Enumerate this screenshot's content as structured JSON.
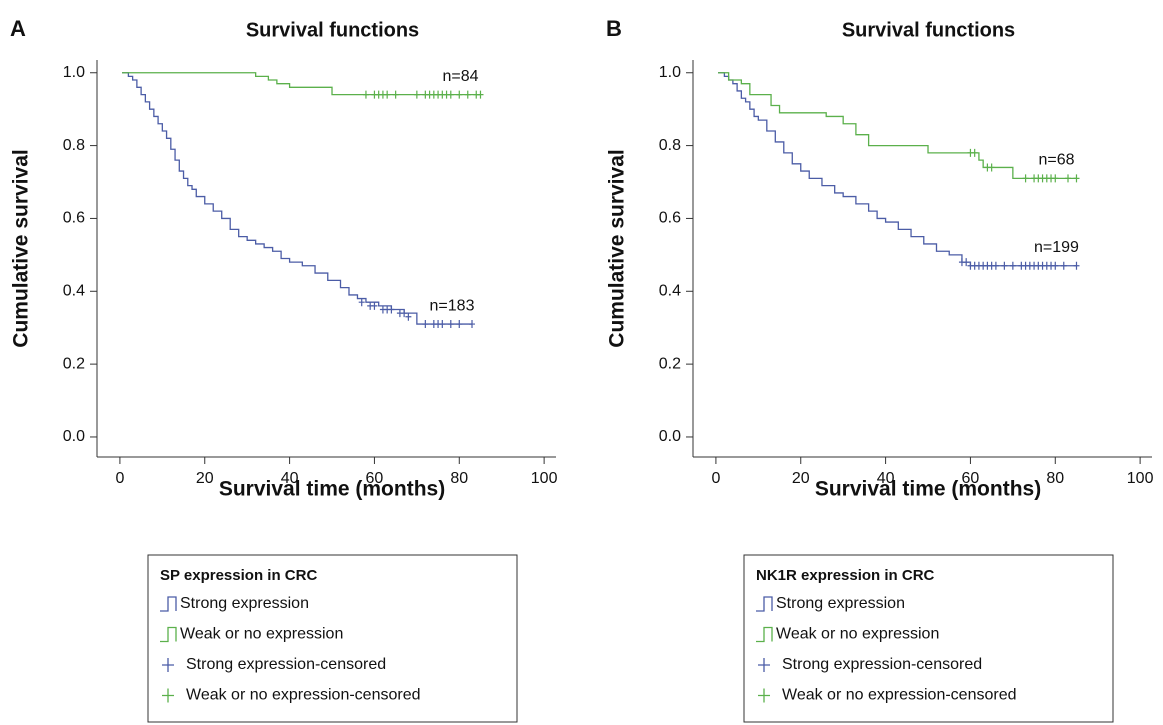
{
  "chart_data": [
    {
      "type": "step",
      "panel": "A",
      "title": "Survival functions",
      "xlabel": "Survival time (months)",
      "ylabel": "Cumulative survival",
      "xlim": [
        -5.4,
        102.8
      ],
      "ylim": [
        -0.055,
        1.035
      ],
      "xticks": [
        0,
        20,
        40,
        60,
        80,
        100
      ],
      "yticks": [
        {
          "value": 0,
          "label": "0.0"
        },
        0.2,
        0.4,
        0.6,
        0.8,
        {
          "value": 1,
          "label": "1.0"
        }
      ],
      "annotations": [
        "n=183",
        "n=84"
      ],
      "legend_title": "SP expression in CRC",
      "series": [
        {
          "name": "Strong expression",
          "type": "step",
          "color": "#4b5ca6",
          "x": [
            0.5,
            2,
            3,
            4,
            5,
            6,
            7,
            8,
            9,
            10,
            11,
            12,
            13,
            14,
            15,
            16,
            17,
            18,
            20,
            22,
            24,
            26,
            28,
            30,
            32,
            34,
            36,
            38,
            40,
            43,
            46,
            49,
            52,
            54,
            56,
            58,
            61,
            64,
            67,
            70,
            83
          ],
          "values": [
            1,
            0.99,
            0.98,
            0.96,
            0.94,
            0.92,
            0.9,
            0.88,
            0.86,
            0.84,
            0.82,
            0.79,
            0.76,
            0.73,
            0.71,
            0.69,
            0.68,
            0.66,
            0.64,
            0.62,
            0.6,
            0.57,
            0.55,
            0.54,
            0.53,
            0.52,
            0.51,
            0.49,
            0.48,
            0.47,
            0.45,
            0.43,
            0.41,
            0.39,
            0.38,
            0.37,
            0.36,
            0.35,
            0.34,
            0.31,
            0.31
          ]
        },
        {
          "name": "Weak or no expression",
          "type": "step",
          "color": "#5bb04b",
          "x": [
            0.5,
            32,
            35,
            37,
            40,
            50,
            85
          ],
          "values": [
            1,
            0.99,
            0.98,
            0.97,
            0.96,
            0.94,
            0.94
          ]
        },
        {
          "name": "Strong expression-censored",
          "type": "censored",
          "color": "#4b5ca6",
          "x": [
            57,
            59,
            60,
            62,
            63,
            64,
            66,
            67,
            68,
            72,
            74,
            75,
            76,
            78,
            80,
            83
          ],
          "values": [
            0.37,
            0.36,
            0.36,
            0.35,
            0.35,
            0.35,
            0.34,
            0.34,
            0.33,
            0.31,
            0.31,
            0.31,
            0.31,
            0.31,
            0.31,
            0.31
          ]
        },
        {
          "name": "Weak or no expression-censored",
          "type": "censored",
          "color": "#5bb04b",
          "x": [
            58,
            60,
            61,
            62,
            63,
            65,
            70,
            72,
            73,
            74,
            75,
            76,
            77,
            78,
            80,
            82,
            84,
            85
          ],
          "values": [
            0.94,
            0.94,
            0.94,
            0.94,
            0.94,
            0.94,
            0.94,
            0.94,
            0.94,
            0.94,
            0.94,
            0.94,
            0.94,
            0.94,
            0.94,
            0.94,
            0.94,
            0.94
          ]
        }
      ]
    },
    {
      "type": "step",
      "panel": "B",
      "title": "Survival functions",
      "xlabel": "Survival time (months)",
      "ylabel": "Cumulative survival",
      "xlim": [
        -5.4,
        102.8
      ],
      "ylim": [
        -0.055,
        1.035
      ],
      "xticks": [
        0,
        20,
        40,
        60,
        80,
        100
      ],
      "yticks": [
        {
          "value": 0,
          "label": "0.0"
        },
        0.2,
        0.4,
        0.6,
        0.8,
        {
          "value": 1,
          "label": "1.0"
        }
      ],
      "annotations": [
        "n=199",
        "n=68"
      ],
      "legend_title": "NK1R expression in CRC",
      "series": [
        {
          "name": "Strong expression",
          "type": "step",
          "color": "#4b5ca6",
          "x": [
            0.5,
            2,
            3,
            4,
            5,
            6,
            7,
            8,
            9,
            10,
            12,
            14,
            16,
            18,
            20,
            22,
            25,
            28,
            30,
            33,
            36,
            38,
            40,
            43,
            46,
            49,
            52,
            55,
            58,
            60,
            85
          ],
          "values": [
            1,
            0.99,
            0.98,
            0.97,
            0.95,
            0.93,
            0.92,
            0.9,
            0.88,
            0.87,
            0.84,
            0.81,
            0.78,
            0.75,
            0.73,
            0.71,
            0.69,
            0.67,
            0.66,
            0.64,
            0.62,
            0.6,
            0.59,
            0.57,
            0.55,
            0.53,
            0.51,
            0.5,
            0.48,
            0.47,
            0.47
          ]
        },
        {
          "name": "Weak or no expression",
          "type": "step",
          "color": "#5bb04b",
          "x": [
            0.5,
            3,
            6,
            8,
            13,
            15,
            26,
            30,
            33,
            36,
            50,
            62,
            63,
            70,
            85
          ],
          "values": [
            1,
            0.98,
            0.97,
            0.94,
            0.91,
            0.89,
            0.88,
            0.86,
            0.83,
            0.8,
            0.78,
            0.76,
            0.74,
            0.71,
            0.71
          ]
        },
        {
          "name": "Strong expression-censored",
          "type": "censored",
          "color": "#4b5ca6",
          "x": [
            58,
            59,
            60,
            61,
            62,
            63,
            64,
            65,
            66,
            68,
            70,
            72,
            73,
            74,
            75,
            76,
            77,
            78,
            79,
            80,
            82,
            85
          ],
          "values": [
            0.48,
            0.48,
            0.47,
            0.47,
            0.47,
            0.47,
            0.47,
            0.47,
            0.47,
            0.47,
            0.47,
            0.47,
            0.47,
            0.47,
            0.47,
            0.47,
            0.47,
            0.47,
            0.47,
            0.47,
            0.47,
            0.47
          ]
        },
        {
          "name": "Weak or no expression-censored",
          "type": "censored",
          "color": "#5bb04b",
          "x": [
            60,
            61,
            64,
            65,
            73,
            75,
            76,
            77,
            78,
            79,
            80,
            83,
            85
          ],
          "values": [
            0.78,
            0.78,
            0.74,
            0.74,
            0.71,
            0.71,
            0.71,
            0.71,
            0.71,
            0.71,
            0.71,
            0.71,
            0.71
          ]
        }
      ]
    }
  ]
}
